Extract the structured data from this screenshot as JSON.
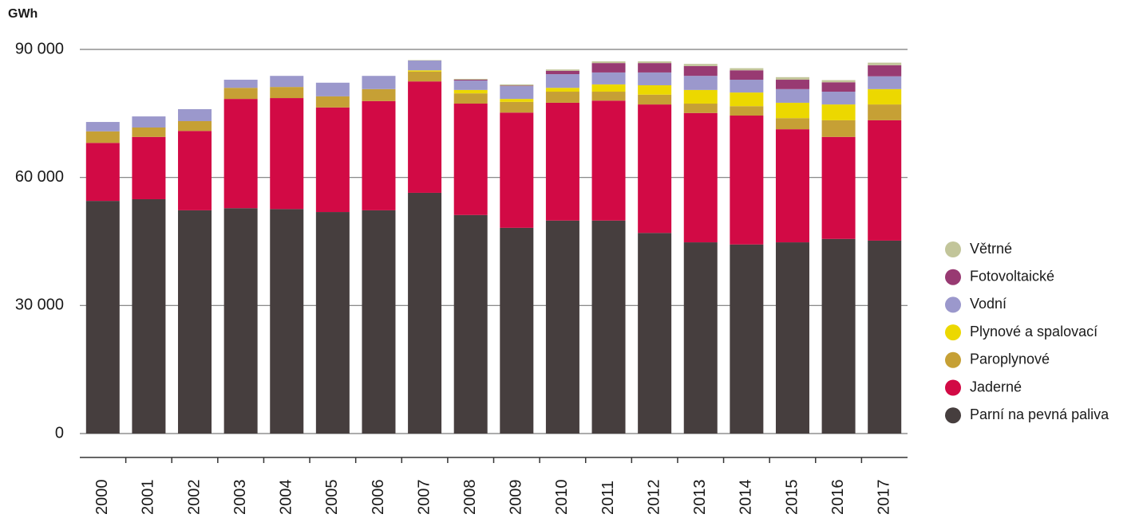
{
  "chart_data": {
    "type": "stacked_bar",
    "y_label": "GWh",
    "categories": [
      "2000",
      "2001",
      "2002",
      "2003",
      "2004",
      "2005",
      "2006",
      "2007",
      "2008",
      "2009",
      "2010",
      "2011",
      "2012",
      "2013",
      "2014",
      "2015",
      "2016",
      "2017"
    ],
    "series": [
      {
        "name": "Parní na pevná paliva",
        "color": "#463e3e",
        "values": [
          54500,
          54900,
          52300,
          52800,
          52600,
          51900,
          52300,
          56400,
          51200,
          48200,
          49900,
          49900,
          47000,
          44800,
          44300,
          44800,
          45600,
          45200
        ]
      },
      {
        "name": "Jaderné",
        "color": "#d20a45",
        "values": [
          13600,
          14600,
          18600,
          25600,
          26000,
          24500,
          25600,
          26100,
          26100,
          27000,
          27600,
          28100,
          30100,
          30300,
          30200,
          26500,
          23900,
          28200
        ]
      },
      {
        "name": "Paroplynové",
        "color": "#c6a035",
        "values": [
          2700,
          2200,
          2300,
          2600,
          2600,
          2600,
          2800,
          2300,
          2400,
          2500,
          2600,
          2100,
          2300,
          2200,
          2200,
          2600,
          3900,
          3700
        ]
      },
      {
        "name": "Plynové a spalovací",
        "color": "#ecd800",
        "values": [
          0,
          0,
          0,
          0,
          0,
          0,
          0,
          300,
          800,
          700,
          900,
          1700,
          2200,
          3200,
          3200,
          3600,
          3700,
          3600
        ]
      },
      {
        "name": "Vodní",
        "color": "#9b98cc",
        "values": [
          2200,
          2600,
          2800,
          1900,
          2600,
          3200,
          3100,
          2300,
          2200,
          3000,
          3200,
          2800,
          3000,
          3300,
          3000,
          3200,
          3000,
          3000
        ]
      },
      {
        "name": "Fotovoltaické",
        "color": "#983a72",
        "values": [
          0,
          0,
          0,
          0,
          0,
          0,
          0,
          0,
          200,
          100,
          800,
          2200,
          2200,
          2300,
          2200,
          2200,
          2200,
          2600
        ]
      },
      {
        "name": "Větrné",
        "color": "#c2c59a",
        "values": [
          0,
          0,
          0,
          0,
          0,
          0,
          0,
          100,
          200,
          300,
          300,
          400,
          400,
          500,
          500,
          600,
          500,
          600
        ]
      }
    ],
    "ylim": [
      0,
      90000
    ],
    "yticks": [
      0,
      {
        "value": 30000,
        "label": "30 000"
      },
      {
        "value": 60000,
        "label": "60 000"
      },
      {
        "value": 90000,
        "label": "90 000"
      }
    ],
    "grid": true
  }
}
